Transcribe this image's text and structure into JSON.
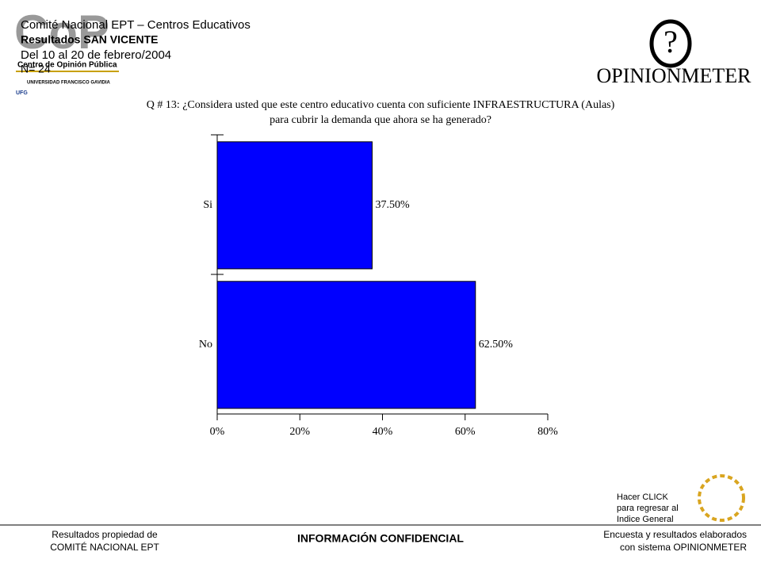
{
  "header": {
    "lines": [
      "Comité Nacional EPT – Centros Educativos",
      "Resultados SAN VICENTE",
      "Del 10 al 20 de febrero/2004",
      "N= 24"
    ]
  },
  "logos": {
    "left_mark": "CoP",
    "left_name": "Centro de Opinión Pública",
    "left_university": "UNIVERSIDAD FRANCISCO GAVIDIA",
    "left_abbr": "UFG",
    "right_mark": "?",
    "right_name": "OPINIONMETER"
  },
  "chart_data": {
    "type": "hbar",
    "title": [
      "Q # 13: ¿Considera usted que este centro educativo cuenta con suficiente INFRAESTRUCTURA (Aulas)",
      "para cubrir la demanda que ahora se ha generado?"
    ],
    "categories": [
      "Si",
      "No"
    ],
    "values": [
      37.5,
      62.5
    ],
    "value_labels": [
      "37.50%",
      "62.50%"
    ],
    "color": "#0000ff",
    "xlim": [
      0,
      80
    ],
    "xticks": [
      {
        "value": 0,
        "label": "0%"
      },
      {
        "value": 20,
        "label": "20%"
      },
      {
        "value": 40,
        "label": "40%"
      },
      {
        "value": 60,
        "label": "60%"
      },
      {
        "value": 80,
        "label": "80%"
      }
    ]
  },
  "nav": {
    "lines": [
      "Hacer CLICK",
      "para regresar al",
      "Indice General"
    ]
  },
  "footer": {
    "left": [
      "Resultados propiedad de",
      "COMITÉ  NACIONAL  EPT"
    ],
    "center": "INFORMACIÓN CONFIDENCIAL",
    "right": [
      "Encuesta y resultados elaborados",
      "con sistema OPINIONMETER"
    ]
  }
}
